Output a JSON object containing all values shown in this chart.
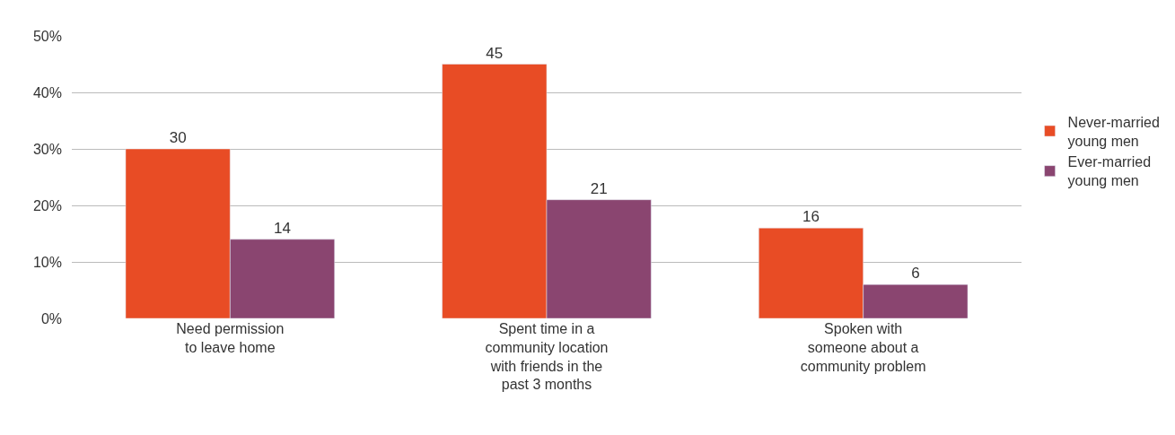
{
  "chart_data": {
    "type": "bar",
    "categories": [
      "Need permission\nto leave home",
      "Spent time in a\ncommunity location\nwith friends in the\npast 3 months",
      "Spoken with\nsomeone about a\ncommunity problem"
    ],
    "series": [
      {
        "name": "Never-married\nyoung men",
        "color": "#e84c25",
        "values": [
          30,
          45,
          16
        ]
      },
      {
        "name": "Ever-married\nyoung men",
        "color": "#8a4570",
        "values": [
          14,
          21,
          6
        ]
      }
    ],
    "ylim": [
      0,
      50
    ],
    "yticks": [
      {
        "value": 0,
        "label": "0%"
      },
      {
        "value": 10,
        "label": "10%"
      },
      {
        "value": 20,
        "label": "20%"
      },
      {
        "value": 30,
        "label": "30%"
      },
      {
        "value": 40,
        "label": "40%"
      },
      {
        "value": 50,
        "label": "50%"
      }
    ],
    "grid": "y",
    "legend": "right",
    "data_labels": true
  }
}
